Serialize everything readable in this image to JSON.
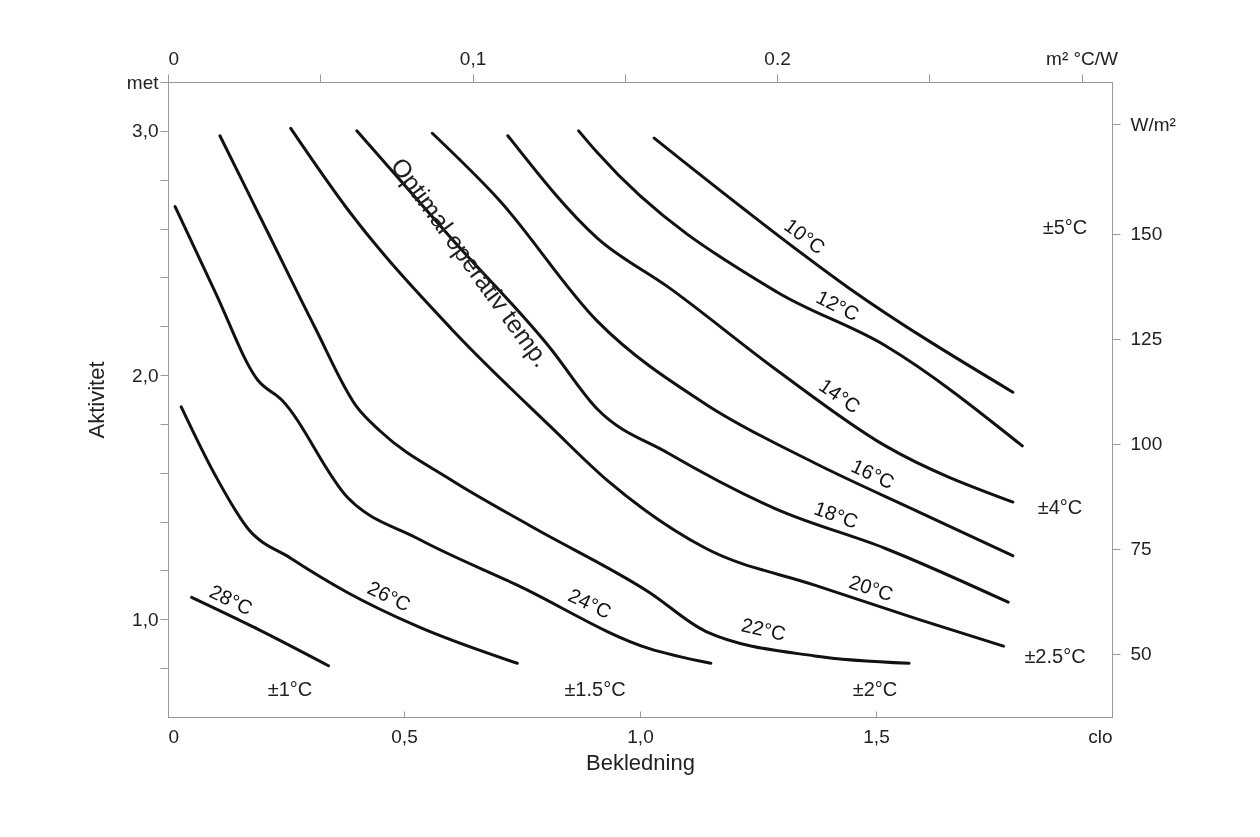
{
  "chart_data": {
    "type": "line",
    "xlabel": "Bekledning",
    "ylabel": "Aktivitet",
    "xlim": [
      0,
      2.0
    ],
    "xticks": [
      0,
      {
        "value": 0.5,
        "label": "0,5"
      },
      {
        "value": 1.0,
        "label": "1,0"
      },
      {
        "value": 1.5,
        "label": "1,5"
      },
      {
        "value": 2.0,
        "label": "clo"
      }
    ],
    "ylim": [
      0.6,
      3.2
    ],
    "yticks": [
      {
        "value": 0.8,
        "label": null
      },
      {
        "value": 1.0,
        "label": "1,0"
      },
      {
        "value": 1.2,
        "label": null
      },
      {
        "value": 1.4,
        "label": null
      },
      {
        "value": 1.6,
        "label": null
      },
      {
        "value": 1.8,
        "label": null
      },
      {
        "value": 2.0,
        "label": "2,0"
      },
      {
        "value": 2.2,
        "label": null
      },
      {
        "value": 2.4,
        "label": null
      },
      {
        "value": 2.6,
        "label": null
      },
      {
        "value": 2.8,
        "label": null
      },
      {
        "value": 3.0,
        "label": "3,0"
      },
      {
        "value": 3.2,
        "label": "met"
      }
    ],
    "x2lim": [
      0,
      0.31
    ],
    "x2ticks": [
      0,
      {
        "value": 0.05,
        "label": null
      },
      {
        "value": 0.1,
        "label": "0,1"
      },
      {
        "value": 0.15,
        "label": null
      },
      {
        "value": 0.2,
        "label": "0.2"
      },
      {
        "value": 0.25,
        "label": null
      },
      {
        "value": 0.3,
        "label": "m² °C/W"
      }
    ],
    "y2lim": [
      34.9,
      186.1
    ],
    "y2ticks": [
      50,
      75,
      100,
      125,
      150,
      {
        "value": 176,
        "label": "W/m²"
      }
    ],
    "grid": false,
    "marker": "none",
    "line_style": "solid",
    "series": [
      {
        "name": "10°C",
        "color": "#111111",
        "x": [
          1.03,
          1.22,
          1.44,
          1.79
        ],
        "values": [
          2.97,
          2.68,
          2.36,
          1.93
        ]
      },
      {
        "name": "12°C",
        "color": "#111111",
        "x": [
          0.87,
          0.91,
          1.29,
          1.52,
          1.81
        ],
        "values": [
          3.0,
          2.91,
          2.34,
          2.12,
          1.71
        ]
      },
      {
        "name": "14°C",
        "color": "#111111",
        "x": [
          0.72,
          0.91,
          1.06,
          1.29,
          1.52,
          1.79
        ],
        "values": [
          2.98,
          2.56,
          2.36,
          2.02,
          1.71,
          1.48
        ]
      },
      {
        "name": "16°C",
        "color": "#111111",
        "x": [
          0.56,
          0.7,
          0.91,
          1.14,
          1.37,
          1.59,
          1.79
        ],
        "values": [
          2.99,
          2.72,
          2.22,
          1.88,
          1.64,
          1.44,
          1.26
        ]
      },
      {
        "name": "18°C",
        "color": "#111111",
        "x": [
          0.4,
          0.6,
          0.81,
          0.91,
          1.06,
          1.29,
          1.52,
          1.78
        ],
        "values": [
          3.0,
          2.56,
          2.11,
          1.86,
          1.68,
          1.45,
          1.29,
          1.07
        ]
      },
      {
        "name": "20°C",
        "color": "#111111",
        "x": [
          0.26,
          0.38,
          0.6,
          0.81,
          0.93,
          1.14,
          1.37,
          1.59,
          1.77
        ],
        "values": [
          3.01,
          2.68,
          2.19,
          1.79,
          1.57,
          1.29,
          1.14,
          1.0,
          0.89
        ]
      },
      {
        "name": "22°C",
        "color": "#111111",
        "x": [
          0.11,
          0.21,
          0.31,
          0.4,
          0.45,
          0.6,
          0.77,
          1.02,
          1.14,
          1.37,
          1.57
        ],
        "values": [
          2.98,
          2.59,
          2.2,
          1.87,
          1.77,
          1.57,
          1.38,
          1.11,
          0.95,
          0.85,
          0.82
        ]
      },
      {
        "name": "24°C",
        "color": "#111111",
        "x": [
          0.015,
          0.1,
          0.19,
          0.24,
          0.38,
          0.53,
          0.74,
          1.02,
          1.15
        ],
        "values": [
          2.69,
          2.34,
          1.98,
          1.9,
          1.5,
          1.33,
          1.14,
          0.88,
          0.82
        ]
      },
      {
        "name": "26°C",
        "color": "#111111",
        "x": [
          0.028,
          0.1,
          0.17,
          0.26,
          0.38,
          0.53,
          0.74
        ],
        "values": [
          1.87,
          1.59,
          1.37,
          1.25,
          1.11,
          0.97,
          0.82
        ]
      },
      {
        "name": "28°C",
        "color": "#111111",
        "x": [
          0.05,
          0.19,
          0.34
        ],
        "values": [
          1.09,
          0.96,
          0.81
        ]
      }
    ],
    "annotations": [
      {
        "text": "Optimal operativ temp.",
        "x": 0.64,
        "y": 2.46
      },
      "±1°C",
      "±1.5°C",
      "±2°C",
      "±2.5°C",
      "±4°C",
      "±5°C"
    ]
  }
}
